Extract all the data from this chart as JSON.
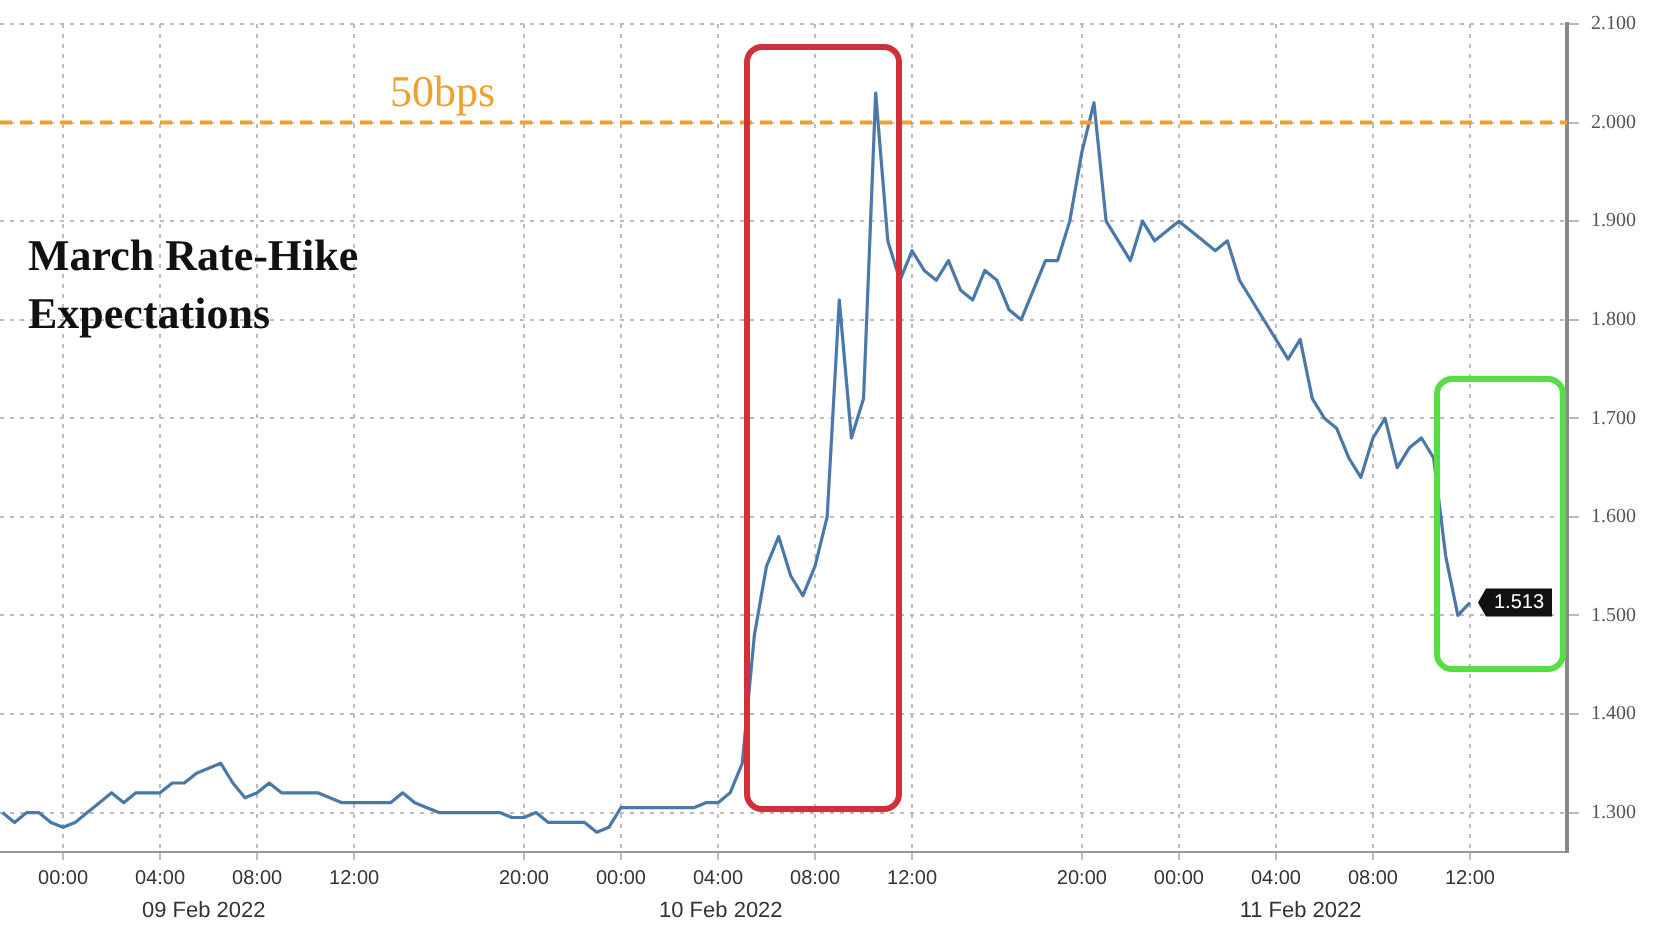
{
  "chart_data": {
    "type": "line",
    "title": "March Rate-Hike Expectations",
    "categories": [
      null,
      null,
      null,
      null,
      null,
      "00:00",
      null,
      null,
      null,
      null,
      null,
      null,
      null,
      "04:00",
      null,
      null,
      null,
      null,
      null,
      null,
      null,
      "08:00",
      null,
      null,
      null,
      null,
      null,
      null,
      null,
      "12:00",
      null,
      null,
      null,
      null,
      null,
      null,
      null,
      null,
      null,
      null,
      null,
      null,
      null,
      "20:00",
      null,
      null,
      null,
      null,
      null,
      null,
      null,
      "00:00",
      null,
      null,
      null,
      null,
      null,
      null,
      null,
      "04:00",
      null,
      null,
      null,
      null,
      null,
      null,
      null,
      "08:00",
      null,
      null,
      null,
      null,
      null,
      null,
      null,
      "12:00",
      null,
      null,
      null,
      null,
      null,
      null,
      null,
      null,
      null,
      null,
      null,
      null,
      null,
      "20:00",
      null,
      null,
      null,
      null,
      null,
      null,
      null,
      "00:00",
      null,
      null,
      null,
      null,
      null,
      null,
      null,
      "04:00",
      null,
      null,
      null,
      null,
      null,
      null,
      null,
      "08:00",
      null,
      null,
      null,
      null,
      null,
      null,
      null,
      "12:00"
    ],
    "series": [
      {
        "color": "#4a78a8",
        "values": [
          1.3,
          1.29,
          1.3,
          1.3,
          1.29,
          1.285,
          1.29,
          1.3,
          1.31,
          1.32,
          1.31,
          1.32,
          1.32,
          1.32,
          1.33,
          1.33,
          1.34,
          1.345,
          1.35,
          1.33,
          1.315,
          1.32,
          1.33,
          1.32,
          1.32,
          1.32,
          1.32,
          1.315,
          1.31,
          1.31,
          1.31,
          1.31,
          1.31,
          1.32,
          1.31,
          1.305,
          1.3,
          1.3,
          1.3,
          1.3,
          1.3,
          1.3,
          1.295,
          1.295,
          1.3,
          1.29,
          1.29,
          1.29,
          1.29,
          1.28,
          1.285,
          1.305,
          1.305,
          1.305,
          1.305,
          1.305,
          1.305,
          1.305,
          1.31,
          1.31,
          1.32,
          1.35,
          1.48,
          1.55,
          1.58,
          1.54,
          1.52,
          1.55,
          1.6,
          1.82,
          1.68,
          1.72,
          2.03,
          1.88,
          1.84,
          1.87,
          1.85,
          1.84,
          1.86,
          1.83,
          1.82,
          1.85,
          1.84,
          1.81,
          1.8,
          1.83,
          1.86,
          1.86,
          1.9,
          1.97,
          2.02,
          1.9,
          1.88,
          1.86,
          1.9,
          1.88,
          1.89,
          1.9,
          1.89,
          1.88,
          1.87,
          1.88,
          1.84,
          1.82,
          1.8,
          1.78,
          1.76,
          1.78,
          1.72,
          1.7,
          1.69,
          1.66,
          1.64,
          1.68,
          1.7,
          1.65,
          1.67,
          1.68,
          1.66,
          1.56,
          1.5,
          1.513
        ],
        "value_labels": [
          null,
          null,
          null,
          null,
          null,
          null,
          null,
          null,
          null,
          null,
          null,
          null,
          null,
          null,
          null,
          null,
          null,
          null,
          null,
          null,
          null,
          null,
          null,
          null,
          null,
          null,
          null,
          null,
          null,
          null,
          null,
          null,
          null,
          null,
          null,
          null,
          null,
          null,
          null,
          null,
          null,
          null,
          null,
          null,
          null,
          null,
          null,
          null,
          null,
          null,
          null,
          null,
          null,
          null,
          null,
          null,
          null,
          null,
          null,
          null,
          null,
          null,
          null,
          null,
          null,
          null,
          null,
          null,
          null,
          null,
          null,
          null,
          null,
          null,
          null,
          null,
          null,
          null,
          null,
          null,
          null,
          null,
          null,
          null,
          null,
          null,
          null,
          null,
          null,
          null,
          null,
          null,
          null,
          null,
          null,
          null,
          null,
          null,
          null,
          null,
          null,
          null,
          null,
          null,
          null,
          null,
          null,
          null,
          null,
          null,
          null,
          null,
          null,
          null,
          null,
          null,
          null,
          null,
          null,
          null,
          null,
          "1.513"
        ]
      }
    ],
    "ylim": [
      1.26,
      2.1
    ],
    "yticks": [
      {
        "value": 1.3,
        "label": "1.300"
      },
      {
        "value": 1.4,
        "label": "1.400"
      },
      {
        "value": 1.5,
        "label": "1.500"
      },
      {
        "value": 1.6,
        "label": "1.600"
      },
      {
        "value": 1.7,
        "label": "1.700"
      },
      {
        "value": 1.8,
        "label": "1.800"
      },
      {
        "value": 1.9,
        "label": "1.900"
      },
      {
        "value": 2.0,
        "label": "2.000"
      },
      {
        "value": 2.1,
        "label": "2.100"
      }
    ],
    "ref_lines": [
      {
        "axis": "y",
        "value": 2.0,
        "label": "50bps",
        "color": "#f0a030",
        "line_style": "dashed"
      }
    ],
    "annotations": [
      "09 Feb 2022",
      "10 Feb 2022",
      "11 Feb 2022"
    ],
    "grid": true,
    "legend": false,
    "marker": "none"
  }
}
